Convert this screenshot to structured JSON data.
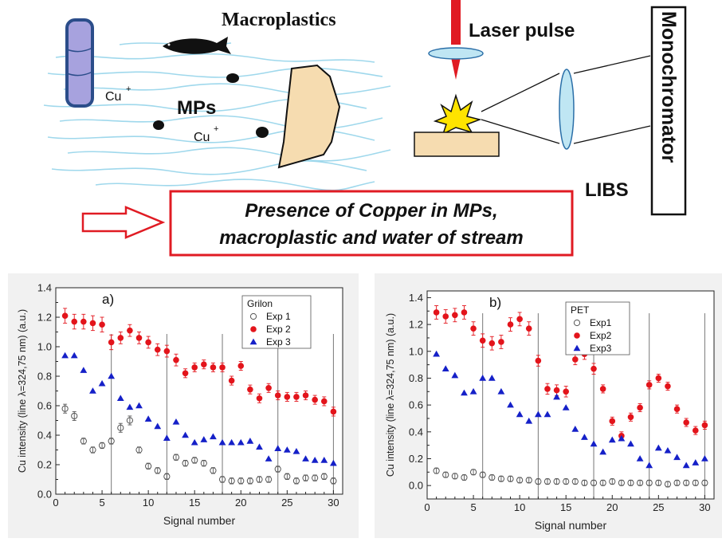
{
  "illustration": {
    "macroplastics_label": "Macroplastics",
    "laser_pulse_label": "Laser pulse",
    "monochromator_label": "Monochromator",
    "mps_label": "MPs",
    "cu_ion_label": "Cu",
    "cu_ion_charge": "+",
    "libs_label": "LIBS",
    "conclusion_line1": "Presence of Copper in MPs,",
    "conclusion_line2": "macroplastic and water of stream",
    "colors": {
      "water": "#9fd8ec",
      "laser": "#e01b23",
      "box_border": "#e01b23",
      "lens": "#bfe6f3",
      "macroplastic": "#f6dcb0",
      "sample": "#f6dcb0",
      "spark": "#ffe400"
    }
  },
  "chart_data": [
    {
      "type": "scatter",
      "panel_label": "a)",
      "legend_title": "Grilon",
      "xlabel": "Signal number",
      "ylabel": "Cu intensity (line λ=324,75 nm) (a.u.)",
      "xlim": [
        0,
        31
      ],
      "ylim": [
        0,
        1.4
      ],
      "xticks": [
        0,
        5,
        10,
        15,
        20,
        25,
        30
      ],
      "xtick_labels": [
        "0",
        "5",
        "10",
        "15",
        "20",
        "25",
        "30"
      ],
      "yticks": [
        0,
        0.2,
        0.4,
        0.6,
        0.8,
        1.0,
        1.2,
        1.4
      ],
      "ytick_labels": [
        "0.0",
        "0.2",
        "0.4",
        "0.6",
        "0.8",
        "1.0",
        "1.2",
        "1.4"
      ],
      "vlines": [
        6,
        12,
        18,
        24,
        30
      ],
      "legend_position": "top-right",
      "series": [
        {
          "name": "Exp 1",
          "marker": "open-circle",
          "color": "#555555",
          "x": [
            1,
            2,
            3,
            4,
            5,
            6,
            7,
            8,
            9,
            10,
            11,
            12,
            13,
            14,
            15,
            16,
            17,
            18,
            19,
            20,
            21,
            22,
            23,
            24,
            25,
            26,
            27,
            28,
            29,
            30
          ],
          "values": [
            0.58,
            0.53,
            0.36,
            0.3,
            0.33,
            0.36,
            0.45,
            0.5,
            0.3,
            0.19,
            0.16,
            0.12,
            0.25,
            0.21,
            0.23,
            0.21,
            0.16,
            0.1,
            0.09,
            0.09,
            0.09,
            0.1,
            0.1,
            0.17,
            0.12,
            0.09,
            0.11,
            0.11,
            0.12,
            0.09
          ],
          "errors": [
            0.03,
            0.03,
            0.02,
            0.02,
            0.02,
            0.02,
            0.03,
            0.03,
            0.02,
            0.02,
            0.02,
            0.02,
            0.02,
            0.02,
            0.02,
            0.02,
            0.02,
            0.02,
            0.02,
            0.02,
            0.02,
            0.02,
            0.02,
            0.02,
            0.02,
            0.02,
            0.02,
            0.02,
            0.02,
            0.02
          ]
        },
        {
          "name": "Exp 2",
          "marker": "filled-circle",
          "color": "#e3141b",
          "x": [
            1,
            2,
            3,
            4,
            5,
            6,
            7,
            8,
            9,
            10,
            11,
            12,
            13,
            14,
            15,
            16,
            17,
            18,
            19,
            20,
            21,
            22,
            23,
            24,
            25,
            26,
            27,
            28,
            29,
            30
          ],
          "values": [
            1.21,
            1.17,
            1.17,
            1.16,
            1.15,
            1.03,
            1.06,
            1.11,
            1.06,
            1.03,
            0.98,
            0.97,
            0.91,
            0.82,
            0.86,
            0.88,
            0.86,
            0.86,
            0.77,
            0.87,
            0.71,
            0.65,
            0.72,
            0.67,
            0.66,
            0.66,
            0.67,
            0.64,
            0.63,
            0.56
          ],
          "errors": [
            0.05,
            0.05,
            0.05,
            0.05,
            0.05,
            0.05,
            0.04,
            0.04,
            0.04,
            0.04,
            0.04,
            0.04,
            0.04,
            0.03,
            0.03,
            0.03,
            0.03,
            0.03,
            0.03,
            0.03,
            0.03,
            0.03,
            0.03,
            0.03,
            0.03,
            0.03,
            0.03,
            0.03,
            0.03,
            0.03
          ]
        },
        {
          "name": "Exp 3",
          "marker": "filled-triangle",
          "color": "#1520c8",
          "x": [
            1,
            2,
            3,
            4,
            5,
            6,
            7,
            8,
            9,
            10,
            11,
            12,
            13,
            14,
            15,
            16,
            17,
            18,
            19,
            20,
            21,
            22,
            23,
            24,
            25,
            26,
            27,
            28,
            29,
            30
          ],
          "values": [
            0.94,
            0.94,
            0.84,
            0.7,
            0.75,
            0.8,
            0.65,
            0.59,
            0.6,
            0.51,
            0.46,
            0.38,
            0.49,
            0.4,
            0.35,
            0.37,
            0.39,
            0.35,
            0.35,
            0.35,
            0.36,
            0.32,
            0.24,
            0.31,
            0.3,
            0.29,
            0.24,
            0.23,
            0.23,
            0.21
          ],
          "errors": [
            0,
            0,
            0,
            0,
            0,
            0,
            0,
            0,
            0,
            0,
            0,
            0,
            0,
            0,
            0,
            0,
            0,
            0,
            0,
            0,
            0,
            0,
            0,
            0,
            0,
            0,
            0,
            0,
            0,
            0
          ]
        }
      ]
    },
    {
      "type": "scatter",
      "panel_label": "b)",
      "legend_title": "PET",
      "xlabel": "Signal number",
      "ylabel": "Cu intensity (line λ=324,75 nm) (a.u.)",
      "xlim": [
        0,
        31
      ],
      "ylim": [
        -0.1,
        1.45
      ],
      "xticks": [
        0,
        5,
        10,
        15,
        20,
        25,
        30
      ],
      "xtick_labels": [
        "0",
        "5",
        "10",
        "15",
        "20",
        "25",
        "30"
      ],
      "yticks": [
        0,
        0.2,
        0.4,
        0.6,
        0.8,
        1.0,
        1.2,
        1.4
      ],
      "ytick_labels": [
        "0.0",
        "0.2",
        "0.4",
        "0.6",
        "0.8",
        "1.0",
        "1.2",
        "1.4"
      ],
      "vlines": [
        6,
        12,
        18,
        24,
        30
      ],
      "legend_position": "top-right",
      "series": [
        {
          "name": "Exp1",
          "marker": "open-circle",
          "color": "#555555",
          "x": [
            1,
            2,
            3,
            4,
            5,
            6,
            7,
            8,
            9,
            10,
            11,
            12,
            13,
            14,
            15,
            16,
            17,
            18,
            19,
            20,
            21,
            22,
            23,
            24,
            25,
            26,
            27,
            28,
            29,
            30
          ],
          "values": [
            0.11,
            0.08,
            0.07,
            0.06,
            0.1,
            0.08,
            0.06,
            0.05,
            0.05,
            0.04,
            0.04,
            0.03,
            0.03,
            0.03,
            0.03,
            0.03,
            0.02,
            0.02,
            0.02,
            0.03,
            0.02,
            0.02,
            0.02,
            0.02,
            0.02,
            0.01,
            0.02,
            0.02,
            0.02,
            0.02
          ],
          "errors": [
            0.02,
            0.02,
            0.02,
            0.02,
            0.02,
            0.02,
            0.02,
            0.02,
            0.02,
            0.02,
            0.02,
            0.02,
            0.02,
            0.02,
            0.02,
            0.02,
            0.02,
            0.02,
            0.02,
            0.02,
            0.02,
            0.02,
            0.02,
            0.02,
            0.02,
            0.02,
            0.02,
            0.02,
            0.02,
            0.02
          ]
        },
        {
          "name": "Exp2",
          "marker": "filled-circle",
          "color": "#e3141b",
          "x": [
            1,
            2,
            3,
            4,
            5,
            6,
            7,
            8,
            9,
            10,
            11,
            12,
            13,
            14,
            15,
            16,
            17,
            18,
            19,
            20,
            21,
            22,
            23,
            24,
            25,
            26,
            27,
            28,
            29,
            30
          ],
          "values": [
            1.29,
            1.26,
            1.27,
            1.29,
            1.17,
            1.08,
            1.06,
            1.07,
            1.2,
            1.24,
            1.17,
            0.93,
            0.72,
            0.71,
            0.7,
            0.94,
            0.98,
            0.87,
            0.72,
            0.48,
            0.37,
            0.51,
            0.58,
            0.75,
            0.8,
            0.74,
            0.57,
            0.47,
            0.41,
            0.45
          ],
          "errors": [
            0.05,
            0.05,
            0.05,
            0.05,
            0.05,
            0.05,
            0.05,
            0.05,
            0.05,
            0.05,
            0.05,
            0.04,
            0.04,
            0.04,
            0.04,
            0.04,
            0.04,
            0.04,
            0.03,
            0.03,
            0.03,
            0.03,
            0.03,
            0.03,
            0.03,
            0.03,
            0.03,
            0.03,
            0.03,
            0.03
          ]
        },
        {
          "name": "Exp3",
          "marker": "filled-triangle",
          "color": "#1520c8",
          "x": [
            1,
            2,
            3,
            4,
            5,
            6,
            7,
            8,
            9,
            10,
            11,
            12,
            13,
            14,
            15,
            16,
            17,
            18,
            19,
            20,
            21,
            22,
            23,
            24,
            25,
            26,
            27,
            28,
            29,
            30
          ],
          "values": [
            0.98,
            0.87,
            0.82,
            0.69,
            0.7,
            0.8,
            0.8,
            0.7,
            0.6,
            0.53,
            0.48,
            0.53,
            0.53,
            0.66,
            0.58,
            0.42,
            0.36,
            0.31,
            0.25,
            0.34,
            0.35,
            0.31,
            0.2,
            0.15,
            0.28,
            0.26,
            0.21,
            0.15,
            0.17,
            0.2
          ],
          "errors": [
            0,
            0,
            0,
            0,
            0,
            0,
            0,
            0,
            0,
            0,
            0,
            0,
            0,
            0,
            0,
            0,
            0,
            0,
            0,
            0,
            0,
            0,
            0,
            0,
            0,
            0,
            0,
            0,
            0,
            0
          ]
        }
      ]
    }
  ]
}
